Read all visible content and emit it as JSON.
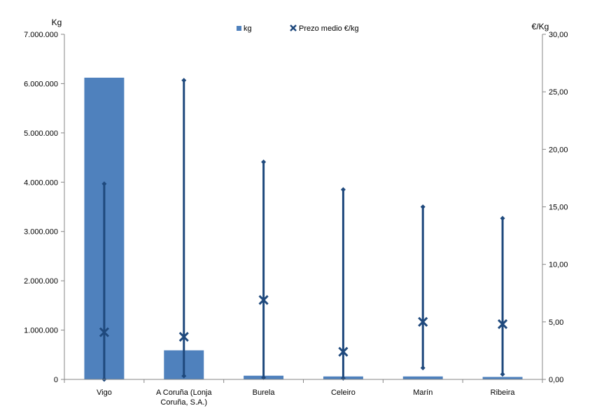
{
  "chart_data": {
    "type": "bar",
    "categories": [
      "Vigo",
      "A Coruña (Lonja Coruña, S.A.)",
      "Burela",
      "Celeiro",
      "Marín",
      "Ribeira"
    ],
    "category_lines": [
      [
        "Vigo"
      ],
      [
        "A Coruña (Lonja",
        "Coruña, S.A.)"
      ],
      [
        "Burela"
      ],
      [
        "Celeiro"
      ],
      [
        "Marín"
      ],
      [
        "Ribeira"
      ]
    ],
    "series": [
      {
        "name": "kg",
        "axis": "left",
        "type": "bar",
        "values": [
          6120000,
          590000,
          75000,
          60000,
          60000,
          50000
        ]
      },
      {
        "name": "Prezo medio €/kg",
        "axis": "right",
        "type": "marker",
        "values": [
          4.1,
          3.7,
          6.9,
          2.4,
          5.0,
          4.8
        ],
        "low": [
          0.0,
          0.3,
          0.15,
          0.1,
          1.0,
          0.45
        ],
        "high": [
          17.0,
          26.0,
          18.9,
          16.5,
          15.0,
          14.0
        ]
      }
    ],
    "y_left": {
      "unit": "Kg",
      "ylim": [
        0,
        7000000
      ],
      "ticks": [
        "0",
        "1.000.000",
        "2.000.000",
        "3.000.000",
        "4.000.000",
        "5.000.000",
        "6.000.000",
        "7.000.000"
      ]
    },
    "y_right": {
      "unit": "€/Kg",
      "ylim": [
        0,
        30
      ],
      "ticks": [
        "0,00",
        "5,00",
        "10,00",
        "15,00",
        "20,00",
        "25,00",
        "30,00"
      ]
    },
    "grid": false,
    "legend": "top-center",
    "colors": {
      "bar": "#4f81bd",
      "marker": "#1f497d",
      "axis": "#868686"
    }
  }
}
